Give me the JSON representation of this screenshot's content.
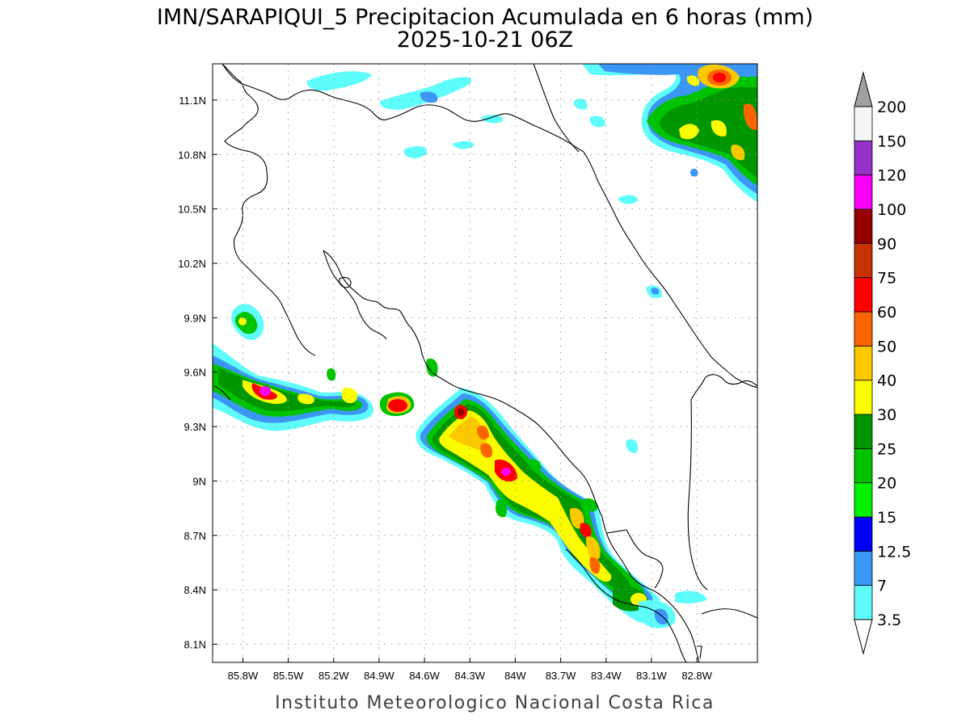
{
  "title": {
    "line1": "IMN/SARAPIQUI_5 Precipitacion Acumulada en 6 horas (mm)",
    "line2": "2025-10-21 06Z"
  },
  "footer": "Instituto Meteorologico Nacional Costa Rica",
  "map": {
    "lon_range": [
      -86.0,
      -82.4
    ],
    "lat_range": [
      8.0,
      11.3
    ],
    "lon_ticks": [
      {
        "value": -85.8,
        "label": "85.8W"
      },
      {
        "value": -85.5,
        "label": "85.5W"
      },
      {
        "value": -85.2,
        "label": "85.2W"
      },
      {
        "value": -84.9,
        "label": "84.9W"
      },
      {
        "value": -84.6,
        "label": "84.6W"
      },
      {
        "value": -84.3,
        "label": "84.3W"
      },
      {
        "value": -84.0,
        "label": "84W"
      },
      {
        "value": -83.7,
        "label": "83.7W"
      },
      {
        "value": -83.4,
        "label": "83.4W"
      },
      {
        "value": -83.1,
        "label": "83.1W"
      },
      {
        "value": -82.8,
        "label": "82.8W"
      }
    ],
    "lat_ticks": [
      {
        "value": 8.1,
        "label": "8.1N"
      },
      {
        "value": 8.4,
        "label": "8.4N"
      },
      {
        "value": 8.7,
        "label": "8.7N"
      },
      {
        "value": 9.0,
        "label": "9N"
      },
      {
        "value": 9.3,
        "label": "9.3N"
      },
      {
        "value": 9.6,
        "label": "9.6N"
      },
      {
        "value": 9.9,
        "label": "9.9N"
      },
      {
        "value": 10.2,
        "label": "10.2N"
      },
      {
        "value": 10.5,
        "label": "10.5N"
      },
      {
        "value": 10.8,
        "label": "10.8N"
      },
      {
        "value": 11.1,
        "label": "11.1N"
      }
    ],
    "grid": true,
    "coastline_color": "#000000"
  },
  "colorbar": {
    "labels": [
      "3.5",
      "7",
      "12.5",
      "15",
      "20",
      "25",
      "30",
      "40",
      "50",
      "60",
      "75",
      "90",
      "100",
      "120",
      "150",
      "200"
    ],
    "colors": [
      "#5ffcfc",
      "#3c96f5",
      "#0000f5",
      "#00f000",
      "#00c300",
      "#009600",
      "#fcfc00",
      "#fcc800",
      "#fc6400",
      "#fc0000",
      "#c83200",
      "#960000",
      "#fc00fc",
      "#9632c8",
      "#f5f5f5"
    ],
    "over_color": "#a0a0a0",
    "under_color": "#ffffff"
  },
  "precip_cells": [
    {
      "lon": -84.35,
      "lat": 9.35,
      "peak_mm": 60
    },
    {
      "lon": -84.15,
      "lat": 9.15,
      "peak_mm": 75
    },
    {
      "lon": -84.0,
      "lat": 9.05,
      "peak_mm": 100
    },
    {
      "lon": -83.7,
      "lat": 8.75,
      "peak_mm": 60
    },
    {
      "lon": -83.6,
      "lat": 8.55,
      "peak_mm": 50
    },
    {
      "lon": -83.3,
      "lat": 8.35,
      "peak_mm": 40
    },
    {
      "lon": -85.7,
      "lat": 9.5,
      "peak_mm": 120
    },
    {
      "lon": -84.8,
      "lat": 9.4,
      "peak_mm": 60
    },
    {
      "lon": -82.7,
      "lat": 11.2,
      "peak_mm": 60
    },
    {
      "lon": -82.9,
      "lat": 10.9,
      "peak_mm": 40
    }
  ]
}
